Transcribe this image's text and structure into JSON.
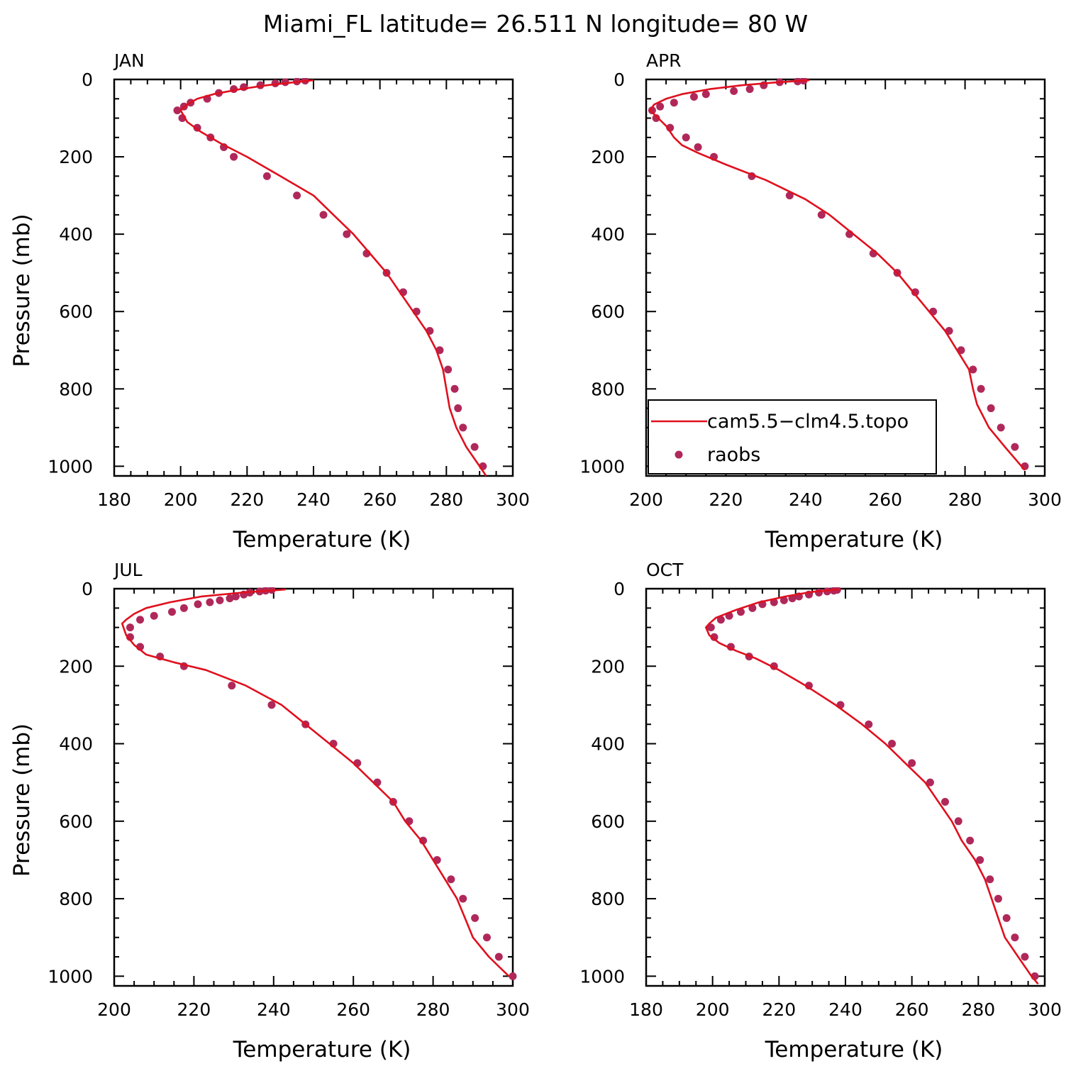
{
  "figure": {
    "title": "Miami_FL  latitude= 26.511 N longitude= 80 W"
  },
  "legend": {
    "model_label": "cam5.5−clm4.5.topo",
    "obs_label": "raobs"
  },
  "colors": {
    "model": "#e0101e",
    "obs": "#b0285a",
    "axis": "#000000"
  },
  "chart_data": [
    {
      "type": "line",
      "panel": "JAN",
      "xlabel": "Temperature (K)",
      "ylabel": "Pressure (mb)",
      "xlim": [
        180,
        300
      ],
      "ylim": [
        1025,
        0
      ],
      "y_inverted": true,
      "xticks": [
        180,
        200,
        220,
        240,
        260,
        280,
        300
      ],
      "yticks": [
        0,
        200,
        400,
        600,
        800,
        1000
      ],
      "series": [
        {
          "name": "cam5.5−clm4.5.topo",
          "kind": "line",
          "points": [
            [
              240,
              2
            ],
            [
              226,
              15
            ],
            [
              218,
              25
            ],
            [
              210,
              38
            ],
            [
              205,
              50
            ],
            [
              202,
              65
            ],
            [
              200,
              80
            ],
            [
              202,
              110
            ],
            [
              206,
              135
            ],
            [
              212,
              165
            ],
            [
              220,
              200
            ],
            [
              230,
              250
            ],
            [
              240,
              300
            ],
            [
              246,
              350
            ],
            [
              252,
              400
            ],
            [
              257,
              450
            ],
            [
              262,
              500
            ],
            [
              266,
              550
            ],
            [
              270,
              600
            ],
            [
              274,
              650
            ],
            [
              277,
              700
            ],
            [
              279,
              750
            ],
            [
              280,
              800
            ],
            [
              281,
              850
            ],
            [
              283,
              900
            ],
            [
              286,
              950
            ],
            [
              290,
              1000
            ],
            [
              292,
              1025
            ]
          ]
        },
        {
          "name": "raobs",
          "kind": "scatter",
          "points": [
            [
              237.5,
              3
            ],
            [
              235,
              5
            ],
            [
              231.5,
              7
            ],
            [
              228.5,
              10
            ],
            [
              224,
              15
            ],
            [
              219,
              20
            ],
            [
              216,
              25
            ],
            [
              211.5,
              35
            ],
            [
              208,
              50
            ],
            [
              203,
              60
            ],
            [
              201,
              70
            ],
            [
              199,
              80
            ],
            [
              200.5,
              100
            ],
            [
              205,
              125
            ],
            [
              209,
              150
            ],
            [
              213,
              175
            ],
            [
              216,
              200
            ],
            [
              226,
              250
            ],
            [
              235,
              300
            ],
            [
              243,
              350
            ],
            [
              250,
              400
            ],
            [
              256,
              450
            ],
            [
              262,
              500
            ],
            [
              267,
              550
            ],
            [
              271,
              600
            ],
            [
              275,
              650
            ],
            [
              278,
              700
            ],
            [
              280.5,
              750
            ],
            [
              282.5,
              800
            ],
            [
              283.5,
              850
            ],
            [
              285,
              900
            ],
            [
              288.5,
              950
            ],
            [
              291,
              1000
            ]
          ]
        }
      ]
    },
    {
      "type": "line",
      "panel": "APR",
      "xlabel": "Temperature (K)",
      "ylabel": "",
      "xlim": [
        200,
        300
      ],
      "ylim": [
        1025,
        0
      ],
      "y_inverted": true,
      "xticks": [
        200,
        220,
        240,
        260,
        280,
        300
      ],
      "yticks": [
        0,
        200,
        400,
        600,
        800,
        1000
      ],
      "series": [
        {
          "name": "cam5.5−clm4.5.topo",
          "kind": "line",
          "points": [
            [
              241,
              2
            ],
            [
              232,
              8
            ],
            [
              224,
              15
            ],
            [
              216,
              25
            ],
            [
              209,
              38
            ],
            [
              205,
              50
            ],
            [
              202,
              65
            ],
            [
              201,
              80
            ],
            [
              203,
              100
            ],
            [
              205,
              120
            ],
            [
              207,
              150
            ],
            [
              209,
              170
            ],
            [
              213,
              190
            ],
            [
              220,
              220
            ],
            [
              230,
              260
            ],
            [
              240,
              310
            ],
            [
              246,
              350
            ],
            [
              252,
              400
            ],
            [
              258,
              450
            ],
            [
              263,
              500
            ],
            [
              267,
              550
            ],
            [
              271,
              600
            ],
            [
              275,
              650
            ],
            [
              278,
              700
            ],
            [
              281,
              750
            ],
            [
              282,
              800
            ],
            [
              283,
              840
            ],
            [
              286,
              900
            ],
            [
              290,
              950
            ],
            [
              295,
              1010
            ]
          ]
        },
        {
          "name": "raobs",
          "kind": "scatter",
          "points": [
            [
              239.5,
              3
            ],
            [
              238,
              5
            ],
            [
              233.5,
              7
            ],
            [
              229.5,
              15
            ],
            [
              226,
              25
            ],
            [
              222,
              30
            ],
            [
              215,
              38
            ],
            [
              212,
              45
            ],
            [
              207,
              60
            ],
            [
              203.5,
              70
            ],
            [
              201.5,
              80
            ],
            [
              202.5,
              100
            ],
            [
              206,
              125
            ],
            [
              210,
              150
            ],
            [
              213,
              175
            ],
            [
              217,
              200
            ],
            [
              226.5,
              250
            ],
            [
              236,
              300
            ],
            [
              244,
              350
            ],
            [
              251,
              400
            ],
            [
              257,
              450
            ],
            [
              263,
              500
            ],
            [
              267.5,
              550
            ],
            [
              272,
              600
            ],
            [
              276,
              650
            ],
            [
              279,
              700
            ],
            [
              282,
              750
            ],
            [
              284,
              800
            ],
            [
              286.5,
              850
            ],
            [
              289,
              900
            ],
            [
              292.5,
              950
            ],
            [
              295,
              1000
            ]
          ]
        }
      ]
    },
    {
      "type": "line",
      "panel": "JUL",
      "xlabel": "Temperature (K)",
      "ylabel": "Pressure (mb)",
      "xlim": [
        200,
        300
      ],
      "ylim": [
        1025,
        0
      ],
      "y_inverted": true,
      "xticks": [
        200,
        220,
        240,
        260,
        280,
        300
      ],
      "yticks": [
        0,
        200,
        400,
        600,
        800,
        1000
      ],
      "series": [
        {
          "name": "cam5.5−clm4.5.topo",
          "kind": "line",
          "points": [
            [
              243,
              2
            ],
            [
              232,
              10
            ],
            [
              222,
              20
            ],
            [
              214,
              35
            ],
            [
              208,
              50
            ],
            [
              205,
              65
            ],
            [
              203,
              80
            ],
            [
              202,
              90
            ],
            [
              203,
              120
            ],
            [
              205,
              145
            ],
            [
              208,
              170
            ],
            [
              215,
              190
            ],
            [
              223,
              210
            ],
            [
              233,
              250
            ],
            [
              242,
              300
            ],
            [
              248,
              350
            ],
            [
              254,
              400
            ],
            [
              260,
              450
            ],
            [
              265,
              500
            ],
            [
              270,
              550
            ],
            [
              273,
              600
            ],
            [
              277,
              650
            ],
            [
              280,
              700
            ],
            [
              283,
              750
            ],
            [
              286,
              800
            ],
            [
              288,
              850
            ],
            [
              290,
              900
            ],
            [
              294,
              950
            ],
            [
              299,
              1000
            ]
          ]
        },
        {
          "name": "raobs",
          "kind": "scatter",
          "points": [
            [
              239.5,
              3
            ],
            [
              238,
              5
            ],
            [
              236.5,
              7
            ],
            [
              234,
              10
            ],
            [
              232.5,
              15
            ],
            [
              230.5,
              20
            ],
            [
              229,
              25
            ],
            [
              226.5,
              30
            ],
            [
              224,
              35
            ],
            [
              221,
              40
            ],
            [
              217.5,
              50
            ],
            [
              214.5,
              60
            ],
            [
              210,
              70
            ],
            [
              206.5,
              80
            ],
            [
              204,
              100
            ],
            [
              204,
              125
            ],
            [
              206.5,
              150
            ],
            [
              211.5,
              175
            ],
            [
              217.5,
              200
            ],
            [
              229.5,
              250
            ],
            [
              239.5,
              300
            ],
            [
              248,
              350
            ],
            [
              255,
              400
            ],
            [
              261,
              450
            ],
            [
              266,
              500
            ],
            [
              270,
              550
            ],
            [
              274,
              600
            ],
            [
              277.5,
              650
            ],
            [
              281,
              700
            ],
            [
              284.5,
              750
            ],
            [
              287.5,
              800
            ],
            [
              290.5,
              850
            ],
            [
              293.5,
              900
            ],
            [
              296.5,
              950
            ],
            [
              300,
              1000
            ]
          ]
        }
      ]
    },
    {
      "type": "line",
      "panel": "OCT",
      "xlabel": "Temperature (K)",
      "ylabel": "",
      "xlim": [
        180,
        300
      ],
      "ylim": [
        1025,
        0
      ],
      "y_inverted": true,
      "xticks": [
        180,
        200,
        220,
        240,
        260,
        280,
        300
      ],
      "yticks": [
        0,
        200,
        400,
        600,
        800,
        1000
      ],
      "series": [
        {
          "name": "cam5.5−clm4.5.topo",
          "kind": "line",
          "points": [
            [
              238,
              2
            ],
            [
              230,
              8
            ],
            [
              222,
              20
            ],
            [
              214,
              35
            ],
            [
              207,
              55
            ],
            [
              201,
              75
            ],
            [
              199,
              90
            ],
            [
              198,
              100
            ],
            [
              199,
              120
            ],
            [
              202,
              140
            ],
            [
              207,
              160
            ],
            [
              213,
              180
            ],
            [
              220,
              210
            ],
            [
              228,
              250
            ],
            [
              237,
              300
            ],
            [
              245,
              350
            ],
            [
              252,
              400
            ],
            [
              258,
              450
            ],
            [
              264,
              500
            ],
            [
              268,
              550
            ],
            [
              272,
              600
            ],
            [
              275,
              650
            ],
            [
              279,
              700
            ],
            [
              282,
              750
            ],
            [
              284,
              800
            ],
            [
              286,
              850
            ],
            [
              288,
              900
            ],
            [
              292,
              950
            ],
            [
              296,
              1000
            ],
            [
              298,
              1020
            ]
          ]
        },
        {
          "name": "raobs",
          "kind": "scatter",
          "points": [
            [
              237.5,
              3
            ],
            [
              236.5,
              5
            ],
            [
              234.5,
              7
            ],
            [
              232,
              10
            ],
            [
              229,
              15
            ],
            [
              226,
              20
            ],
            [
              224,
              25
            ],
            [
              221.5,
              30
            ],
            [
              218.5,
              35
            ],
            [
              215,
              40
            ],
            [
              212,
              50
            ],
            [
              208.5,
              60
            ],
            [
              205,
              70
            ],
            [
              202.5,
              80
            ],
            [
              199.5,
              100
            ],
            [
              200.5,
              125
            ],
            [
              205.5,
              150
            ],
            [
              211,
              175
            ],
            [
              218.5,
              200
            ],
            [
              229,
              250
            ],
            [
              238.5,
              300
            ],
            [
              247,
              350
            ],
            [
              254,
              400
            ],
            [
              260,
              450
            ],
            [
              265.5,
              500
            ],
            [
              270,
              550
            ],
            [
              274,
              600
            ],
            [
              277.5,
              650
            ],
            [
              280.5,
              700
            ],
            [
              283.5,
              750
            ],
            [
              286,
              800
            ],
            [
              288.5,
              850
            ],
            [
              291,
              900
            ],
            [
              294,
              950
            ],
            [
              297,
              1000
            ]
          ]
        }
      ]
    }
  ]
}
